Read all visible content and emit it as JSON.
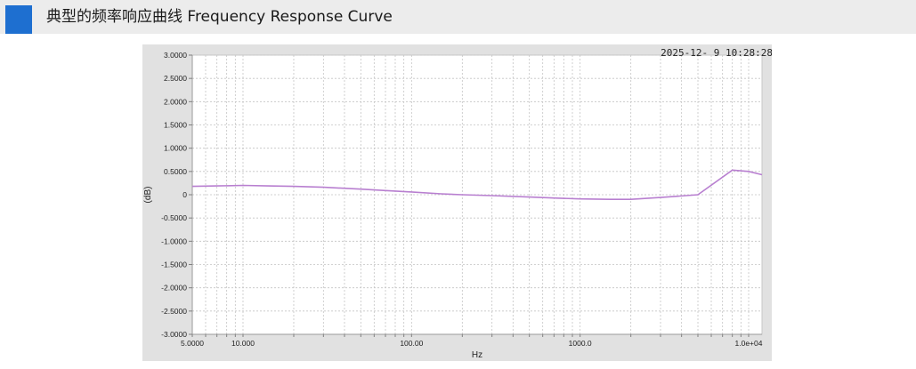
{
  "header": {
    "title": "典型的频率响应曲线 Frequency Response Curve",
    "accent_color": "#1e6fd0"
  },
  "chart_data": {
    "type": "line",
    "timestamp": "2025-12- 9 10:28:28",
    "xlabel": "Hz",
    "ylabel": "(dB)",
    "x_scale": "log",
    "xlim": [
      5,
      12000
    ],
    "ylim": [
      -3,
      3
    ],
    "grid": true,
    "x_tick_labels": [
      {
        "value": 5,
        "label": "5.0000"
      },
      {
        "value": 10,
        "label": "10.000"
      },
      {
        "value": 100,
        "label": "100.00"
      },
      {
        "value": 1000,
        "label": "1000.0"
      },
      {
        "value": 10000,
        "label": "1.0e+04"
      }
    ],
    "y_tick_labels": [
      {
        "value": 3,
        "label": "3.0000"
      },
      {
        "value": 2.5,
        "label": "2.5000"
      },
      {
        "value": 2,
        "label": "2.0000"
      },
      {
        "value": 1.5,
        "label": "1.5000"
      },
      {
        "value": 1,
        "label": "1.0000"
      },
      {
        "value": 0.5,
        "label": "0.5000"
      },
      {
        "value": 0,
        "label": "0"
      },
      {
        "value": -0.5,
        "label": "-0.5000"
      },
      {
        "value": -1,
        "label": "-1.0000"
      },
      {
        "value": -1.5,
        "label": "-1.5000"
      },
      {
        "value": -2,
        "label": "-2.0000"
      },
      {
        "value": -2.5,
        "label": "-2.5000"
      },
      {
        "value": -3,
        "label": "-3.0000"
      }
    ],
    "series": [
      {
        "color": "#b87fd0",
        "x": [
          5,
          7,
          10,
          14,
          20,
          30,
          50,
          70,
          100,
          150,
          200,
          300,
          500,
          700,
          1000,
          1500,
          2000,
          3000,
          5000,
          8000,
          10000,
          12000
        ],
        "y": [
          0.18,
          0.19,
          0.2,
          0.19,
          0.18,
          0.16,
          0.12,
          0.09,
          0.06,
          0.02,
          0.0,
          -0.02,
          -0.05,
          -0.07,
          -0.09,
          -0.1,
          -0.1,
          -0.06,
          0.0,
          0.53,
          0.5,
          0.43
        ]
      }
    ]
  }
}
